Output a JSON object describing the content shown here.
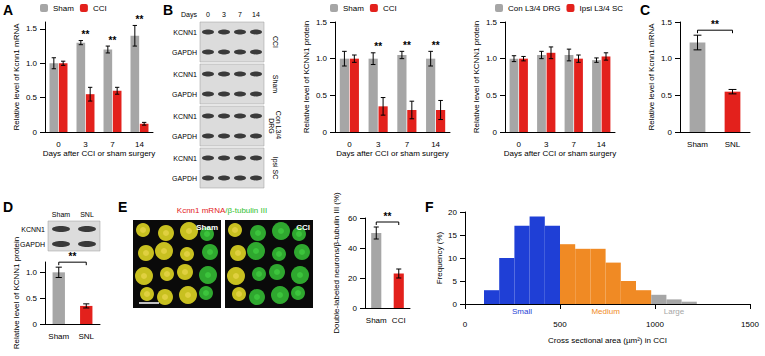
{
  "chart_data": [
    {
      "title": "A",
      "type": "bar",
      "categories": [
        "0",
        "3",
        "7",
        "14"
      ],
      "series": [
        {
          "name": "Sham",
          "color": "#a6a6a6",
          "values": [
            1.0,
            1.3,
            1.2,
            1.4
          ],
          "errors": [
            0.08,
            0.03,
            0.05,
            0.15
          ]
        },
        {
          "name": "CCI",
          "color": "#e3211c",
          "values": [
            1.0,
            0.55,
            0.6,
            0.12
          ],
          "errors": [
            0.03,
            0.1,
            0.05,
            0.02
          ]
        }
      ],
      "xlabel": "Days after CCI or sham surgery",
      "ylabel": "Relative level of Kcnn1 mRNA",
      "ylim": [
        0,
        1.6
      ],
      "yticks": [
        0,
        0.5,
        {
          "value": 1,
          "label": "1.0"
        },
        1.5
      ],
      "legend": "top",
      "annotations": [
        {
          "x": "3",
          "text": "**"
        },
        {
          "x": "7",
          "text": "**"
        },
        {
          "x": "14",
          "text": "**"
        }
      ]
    },
    {
      "title": "B",
      "type": "bar",
      "categories": [
        "0",
        "3",
        "7",
        "14"
      ],
      "series": [
        {
          "name": "Sham",
          "color": "#a6a6a6",
          "values": [
            1.0,
            1.0,
            1.05,
            1.0
          ],
          "errors": [
            0.1,
            0.08,
            0.05,
            0.1
          ]
        },
        {
          "name": "CCI",
          "color": "#e3211c",
          "values": [
            1.0,
            0.35,
            0.3,
            0.3
          ],
          "errors": [
            0.05,
            0.12,
            0.12,
            0.13
          ]
        }
      ],
      "xlabel": "Days after CCI or sham surgery",
      "ylabel": "Relative level of KCNN1 protein",
      "ylim": [
        0,
        1.5
      ],
      "yticks": [
        0,
        0.5,
        {
          "value": 1,
          "label": "1.0"
        },
        1.5
      ],
      "legend": "top",
      "annotations": [
        {
          "x": "3",
          "text": "**"
        },
        {
          "x": "7",
          "text": "**"
        },
        {
          "x": "14",
          "text": "**"
        }
      ]
    },
    {
      "type": "bar",
      "categories": [
        "0",
        "3",
        "7",
        "14"
      ],
      "series": [
        {
          "name": "Con L3/4 DRG",
          "color": "#a6a6a6",
          "values": [
            1.0,
            1.05,
            1.05,
            0.98
          ],
          "errors": [
            0.04,
            0.05,
            0.08,
            0.03
          ]
        },
        {
          "name": "Ipsi L3/4 SC",
          "color": "#e3211c",
          "values": [
            1.0,
            1.08,
            1.0,
            1.03
          ],
          "errors": [
            0.03,
            0.08,
            0.05,
            0.05
          ]
        }
      ],
      "xlabel": "Days after CCI or sham surgery",
      "ylabel": "Relative level of KCNN1 protein",
      "ylim": [
        0,
        1.5
      ],
      "yticks": [
        0,
        0.5,
        {
          "value": 1,
          "label": "1.0"
        },
        1.5
      ],
      "legend": "top"
    },
    {
      "title": "C",
      "type": "bar",
      "categories": [
        "Sham",
        "SNL"
      ],
      "values": [
        1.22,
        0.55
      ],
      "errors": [
        0.1,
        0.03
      ],
      "colors": [
        "#a6a6a6",
        "#e3211c"
      ],
      "ylabel": "Relative level of Kcnn1 mRNA",
      "ylim": [
        0,
        1.5
      ],
      "yticks": [
        0,
        0.5,
        {
          "value": 1,
          "label": "1.0"
        },
        1.5
      ],
      "annotations": [
        {
          "x": [
            "Sham",
            "SNL"
          ],
          "text": "**"
        }
      ]
    },
    {
      "title": "D",
      "type": "bar",
      "categories": [
        "Sham",
        "SNL"
      ],
      "values": [
        1.0,
        0.35
      ],
      "errors": [
        0.1,
        0.04
      ],
      "colors": [
        "#a6a6a6",
        "#e3211c"
      ],
      "ylabel": "Relative level of KCNN1 protein",
      "ylim": [
        0,
        1.2
      ],
      "yticks": [
        0,
        0.5,
        {
          "value": 1,
          "label": "1.0"
        }
      ],
      "annotations": [
        {
          "x": [
            "Sham",
            "SNL"
          ],
          "text": "**"
        }
      ]
    },
    {
      "title": "E",
      "type": "bar",
      "categories": [
        "Sham",
        "CCI"
      ],
      "values": [
        50,
        23
      ],
      "errors": [
        4,
        3
      ],
      "colors": [
        "#a6a6a6",
        "#e3211c"
      ],
      "ylabel": "Double-labeled neurons/β-tubulin III (%)",
      "ylim": [
        0,
        60
      ],
      "yticks": [
        0,
        20,
        40,
        60
      ],
      "annotations": [
        {
          "x": [
            "Sham",
            "CCI"
          ],
          "text": "**"
        }
      ]
    },
    {
      "title": "F",
      "type": "histogram",
      "bins": [
        100,
        180,
        260,
        340,
        420,
        500,
        580,
        660,
        740,
        820,
        900,
        980,
        1060,
        1140,
        1220
      ],
      "values": [
        3,
        10,
        17,
        19,
        17,
        13,
        12,
        12,
        9,
        5,
        3,
        2,
        1,
        0.5
      ],
      "colors": [
        "#1f3fd6",
        "#1f3fd6",
        "#1f3fd6",
        "#1f3fd6",
        "#1f3fd6",
        "#f08a24",
        "#f08a24",
        "#f08a24",
        "#f08a24",
        "#f08a24",
        "#f08a24",
        "#a6a6a6",
        "#a6a6a6",
        "#a6a6a6"
      ],
      "xlabel": "Cross sectional area (µm²) in CCI",
      "ylabel": "Frequency (%)",
      "xlim": [
        0,
        1500
      ],
      "xticks": [
        0,
        500,
        1000,
        1500
      ],
      "ylim": [
        0,
        20
      ],
      "yticks": [
        0,
        5,
        10,
        15,
        20
      ],
      "annotations": [
        {
          "x": 300,
          "text": "Small",
          "color": "#1f3fd6"
        },
        {
          "x": 740,
          "text": "Medium",
          "color": "#f08a24"
        },
        {
          "x": 1100,
          "text": "Large",
          "color": "#a6a6a6"
        }
      ]
    }
  ],
  "blots": [
    {
      "header": "Days",
      "lanes": [
        "0",
        "3",
        "7",
        "14"
      ],
      "groups": [
        {
          "name": "CCI",
          "rows": [
            "KCNN1",
            "GAPDH"
          ]
        },
        {
          "name": "Sham",
          "rows": [
            "KCNN1",
            "GAPDH"
          ]
        },
        {
          "name": "Con L3/4 DRG",
          "rows": [
            "KCNN1",
            "GAPDH"
          ]
        },
        {
          "name": "Ipsi SC",
          "rows": [
            "KCNN1",
            "GAPDH"
          ]
        }
      ]
    },
    {
      "lanes": [
        "Sham",
        "SNL"
      ],
      "groups": [
        {
          "rows": [
            "KCNN1",
            "GAPDH"
          ]
        }
      ]
    }
  ],
  "micrograph": {
    "title": [
      {
        "text": "Kcnn1 mRNA",
        "color": "#e3211c"
      },
      {
        "text": "/β-tubulin III",
        "color": "#2fbf2f"
      }
    ],
    "images": [
      "Sham",
      "CCI"
    ]
  }
}
